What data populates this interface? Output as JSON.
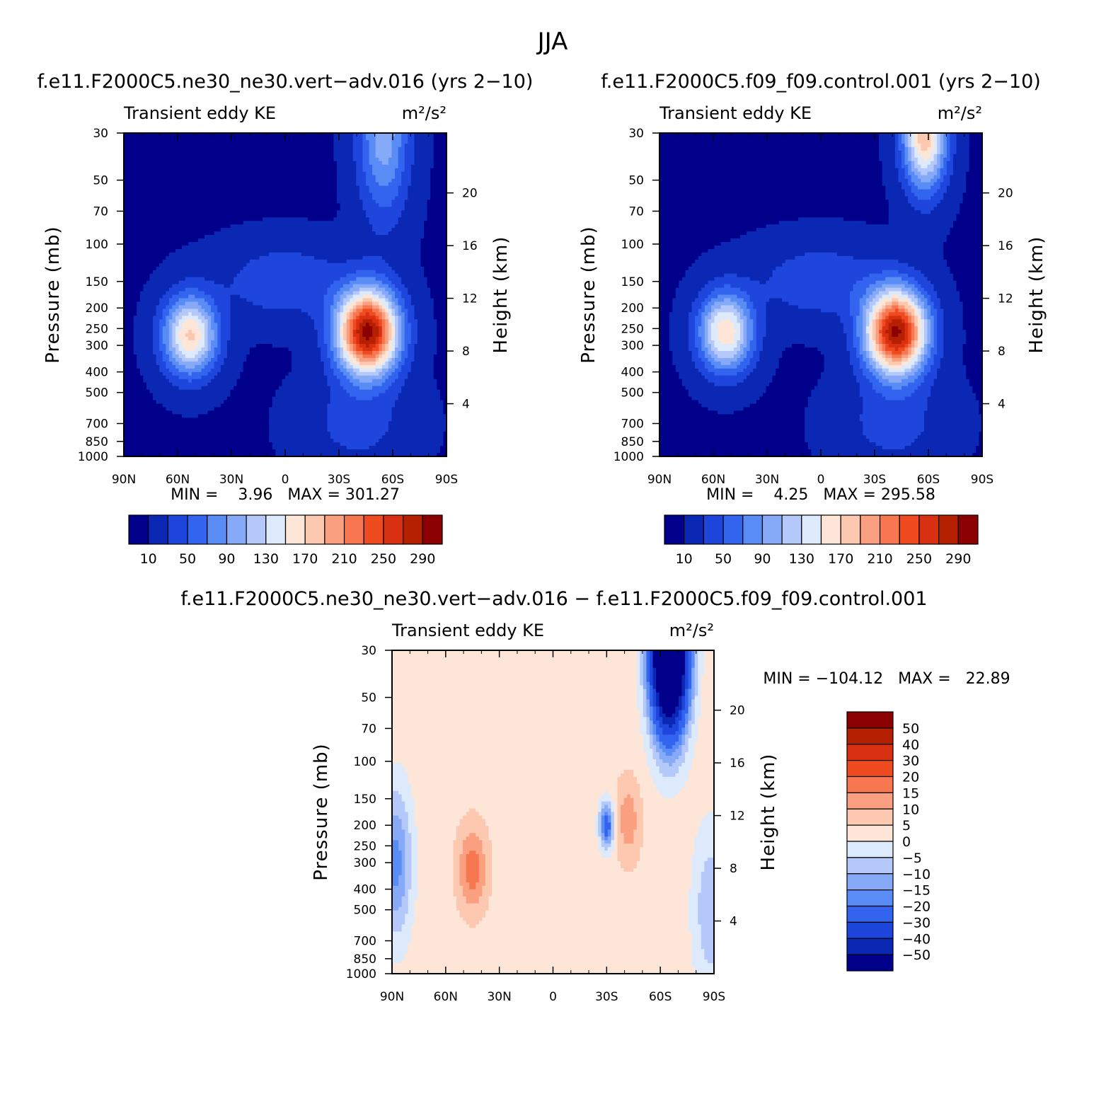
{
  "figure": {
    "title": "JJA"
  },
  "chart_data": [
    {
      "type": "heatmap",
      "title": "f.e11.F2000C5.ne30_ne30.vert−adv.016 (yrs 2−10)",
      "subtitle_left": "Transient eddy KE",
      "subtitle_right": "m²/s²",
      "xlabel": "",
      "ylabel": "Pressure (mb)",
      "ylabel_right": "Height (km)",
      "x_ticks": [
        "90N",
        "60N",
        "30N",
        "0",
        "30S",
        "60S",
        "90S"
      ],
      "y_ticks": [
        "30",
        "50",
        "70",
        "100",
        "150",
        "200",
        "250",
        "300",
        "400",
        "500",
        "700",
        "850",
        "1000"
      ],
      "height_ticks": [
        "4",
        "8",
        "12",
        "16",
        "20"
      ],
      "stats": "MIN =    3.96   MAX = 301.27",
      "min": 3.96,
      "max": 301.27,
      "colorbar": {
        "orientation": "horizontal",
        "levels": [
          10,
          30,
          50,
          70,
          90,
          110,
          130,
          150,
          170,
          190,
          210,
          230,
          250,
          270,
          290
        ],
        "labels": [
          "10",
          "50",
          "90",
          "130",
          "170",
          "210",
          "250",
          "290"
        ],
        "colors": [
          "#00008b",
          "#0a28b4",
          "#1e46dc",
          "#3264f0",
          "#5a8cf5",
          "#87aaf8",
          "#b4c8fa",
          "#dceafc",
          "#fde6d8",
          "#fcc8b0",
          "#faa080",
          "#f77850",
          "#f04a20",
          "#d83010",
          "#b42000",
          "#8b0000"
        ]
      },
      "jets": [
        {
          "lat": 55,
          "level_mb": 250,
          "value": 175
        },
        {
          "lat": -45,
          "level_mb": 270,
          "value": 301
        }
      ]
    },
    {
      "type": "heatmap",
      "title": "f.e11.F2000C5.f09_f09.control.001 (yrs 2−10)",
      "subtitle_left": "Transient eddy KE",
      "subtitle_right": "m²/s²",
      "xlabel": "",
      "ylabel": "Pressure (mb)",
      "ylabel_right": "Height (km)",
      "x_ticks": [
        "90N",
        "60N",
        "30N",
        "0",
        "30S",
        "60S",
        "90S"
      ],
      "y_ticks": [
        "30",
        "50",
        "70",
        "100",
        "150",
        "200",
        "250",
        "300",
        "400",
        "500",
        "700",
        "850",
        "1000"
      ],
      "height_ticks": [
        "4",
        "8",
        "12",
        "16",
        "20"
      ],
      "stats": "MIN =    4.25   MAX = 295.58",
      "min": 4.25,
      "max": 295.58,
      "colorbar": {
        "orientation": "horizontal",
        "levels": [
          10,
          30,
          50,
          70,
          90,
          110,
          130,
          150,
          170,
          190,
          210,
          230,
          250,
          270,
          290
        ],
        "labels": [
          "10",
          "50",
          "90",
          "130",
          "170",
          "210",
          "250",
          "290"
        ],
        "colors": [
          "#00008b",
          "#0a28b4",
          "#1e46dc",
          "#3264f0",
          "#5a8cf5",
          "#87aaf8",
          "#b4c8fa",
          "#dceafc",
          "#fde6d8",
          "#fcc8b0",
          "#faa080",
          "#f77850",
          "#f04a20",
          "#d83010",
          "#b42000",
          "#8b0000"
        ]
      },
      "jets": [
        {
          "lat": 55,
          "level_mb": 250,
          "value": 165
        },
        {
          "lat": -38,
          "level_mb": 250,
          "value": 295
        }
      ]
    },
    {
      "type": "heatmap",
      "title": "f.e11.F2000C5.ne30_ne30.vert−adv.016 − f.e11.F2000C5.f09_f09.control.001",
      "subtitle_left": "Transient eddy KE",
      "subtitle_right": "m²/s²",
      "xlabel": "",
      "ylabel": "Pressure (mb)",
      "ylabel_right": "Height (km)",
      "x_ticks": [
        "90N",
        "60N",
        "30N",
        "0",
        "30S",
        "60S",
        "90S"
      ],
      "y_ticks": [
        "30",
        "50",
        "70",
        "100",
        "150",
        "200",
        "250",
        "300",
        "400",
        "500",
        "700",
        "850",
        "1000"
      ],
      "height_ticks": [
        "4",
        "8",
        "12",
        "16",
        "20"
      ],
      "stats": "MIN = −104.12   MAX =   22.89",
      "min": -104.12,
      "max": 22.89,
      "colorbar": {
        "orientation": "vertical",
        "levels": [
          -50,
          -40,
          -30,
          -20,
          -15,
          -10,
          -5,
          0,
          5,
          10,
          15,
          20,
          30,
          40,
          50
        ],
        "labels": [
          "50",
          "40",
          "30",
          "20",
          "15",
          "10",
          "5",
          "0",
          "−5",
          "−10",
          "−15",
          "−20",
          "−30",
          "−40",
          "−50"
        ],
        "colors": [
          "#00008b",
          "#0a28b4",
          "#1e46dc",
          "#3264f0",
          "#5a8cf5",
          "#87aaf8",
          "#b4c8fa",
          "#dceafc",
          "#fde6d8",
          "#fcc8b0",
          "#faa080",
          "#f77850",
          "#f04a20",
          "#d83010",
          "#b42000",
          "#8b0000"
        ]
      }
    }
  ]
}
